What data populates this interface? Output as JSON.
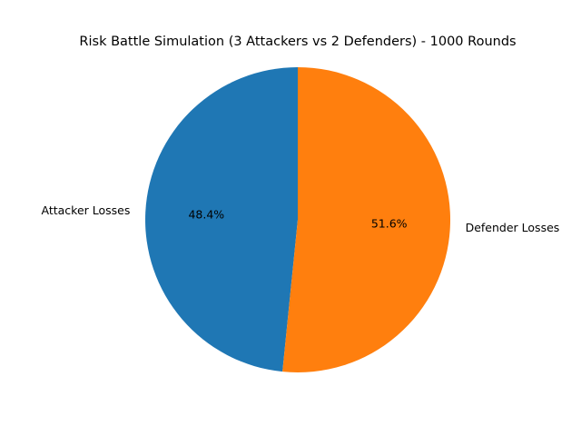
{
  "chart_data": {
    "type": "pie",
    "title": "Risk Battle Simulation (3 Attackers vs 2 Defenders) - 1000 Rounds",
    "slices": [
      {
        "label": "Attacker Losses",
        "value": 48.4,
        "pct_label": "48.4%",
        "color": "#1f77b4"
      },
      {
        "label": "Defender Losses",
        "value": 51.6,
        "pct_label": "51.6%",
        "color": "#ff7f0e"
      }
    ],
    "start_angle_deg": 90,
    "direction": "counterclockwise",
    "legend": "none"
  }
}
